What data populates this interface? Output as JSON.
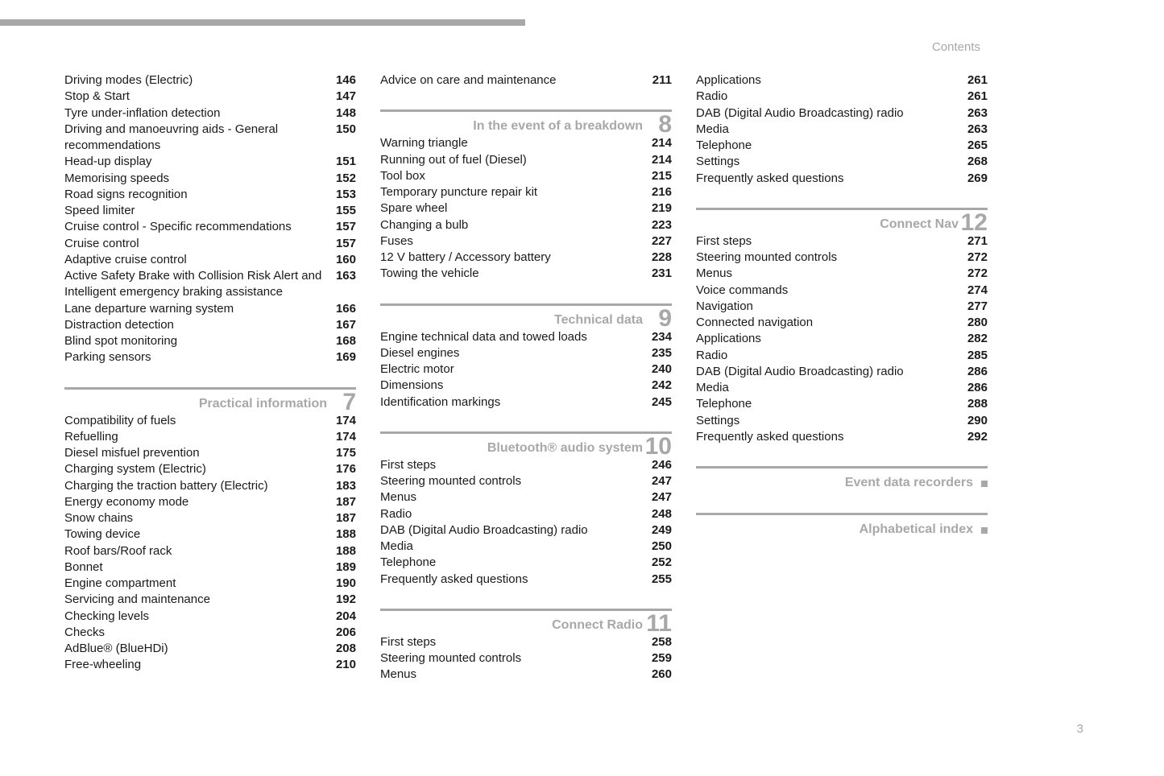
{
  "header_label": "Contents",
  "page_number": "3",
  "columns": [
    {
      "blocks": [
        {
          "entries": [
            {
              "topic": "Driving modes (Electric)",
              "page": "146"
            },
            {
              "topic": "Stop & Start",
              "page": "147"
            },
            {
              "topic": "Tyre under-inflation detection",
              "page": "148"
            },
            {
              "topic": "Driving and manoeuvring aids - General recommendations",
              "page": "150"
            },
            {
              "topic": "Head-up display",
              "page": "151"
            },
            {
              "topic": "Memorising speeds",
              "page": "152"
            },
            {
              "topic": "Road signs recognition",
              "page": "153"
            },
            {
              "topic": "Speed limiter",
              "page": "155"
            },
            {
              "topic": "Cruise control - Specific recommendations",
              "page": "157"
            },
            {
              "topic": "Cruise control",
              "page": "157"
            },
            {
              "topic": "Adaptive cruise control",
              "page": "160"
            },
            {
              "topic": "Active Safety Brake with Collision Risk Alert and Intelligent emergency braking assistance",
              "page": "163"
            },
            {
              "topic": "Lane departure warning system",
              "page": "166"
            },
            {
              "topic": "Distraction detection",
              "page": "167"
            },
            {
              "topic": "Blind spot monitoring",
              "page": "168"
            },
            {
              "topic": "Parking sensors",
              "page": "169"
            }
          ]
        },
        {
          "section": {
            "title": "Practical information",
            "num": "7"
          },
          "entries": [
            {
              "topic": "Compatibility of fuels",
              "page": "174"
            },
            {
              "topic": "Refuelling",
              "page": "174"
            },
            {
              "topic": "Diesel misfuel prevention",
              "page": "175"
            },
            {
              "topic": "Charging system (Electric)",
              "page": "176"
            },
            {
              "topic": "Charging the traction battery (Electric)",
              "page": "183"
            },
            {
              "topic": "Energy economy mode",
              "page": "187"
            },
            {
              "topic": "Snow chains",
              "page": "187"
            },
            {
              "topic": "Towing device",
              "page": "188"
            },
            {
              "topic": "Roof bars/Roof rack",
              "page": "188"
            },
            {
              "topic": "Bonnet",
              "page": "189"
            },
            {
              "topic": "Engine compartment",
              "page": "190"
            },
            {
              "topic": "Servicing and maintenance",
              "page": "192"
            },
            {
              "topic": "Checking levels",
              "page": "204"
            },
            {
              "topic": "Checks",
              "page": "206"
            },
            {
              "topic": "AdBlue® (BlueHDi)",
              "page": "208"
            },
            {
              "topic": "Free-wheeling",
              "page": "210"
            }
          ]
        }
      ]
    },
    {
      "blocks": [
        {
          "entries": [
            {
              "topic": "Advice on care and maintenance",
              "page": "211"
            }
          ]
        },
        {
          "section": {
            "title": "In the event of a breakdown",
            "num": "8"
          },
          "entries": [
            {
              "topic": "Warning triangle",
              "page": "214"
            },
            {
              "topic": "Running out of fuel (Diesel)",
              "page": "214"
            },
            {
              "topic": "Tool box",
              "page": "215"
            },
            {
              "topic": "Temporary puncture repair kit",
              "page": "216"
            },
            {
              "topic": "Spare wheel",
              "page": "219"
            },
            {
              "topic": "Changing a bulb",
              "page": "223"
            },
            {
              "topic": "Fuses",
              "page": "227"
            },
            {
              "topic": "12 V battery / Accessory battery",
              "page": "228"
            },
            {
              "topic": "Towing the vehicle",
              "page": "231"
            }
          ]
        },
        {
          "section": {
            "title": "Technical data",
            "num": "9"
          },
          "entries": [
            {
              "topic": "Engine technical data and towed loads",
              "page": "234"
            },
            {
              "topic": "Diesel engines",
              "page": "235"
            },
            {
              "topic": "Electric motor",
              "page": "240"
            },
            {
              "topic": "Dimensions",
              "page": "242"
            },
            {
              "topic": "Identification markings",
              "page": "245"
            }
          ]
        },
        {
          "section": {
            "title": "Bluetooth® audio system",
            "num": "10"
          },
          "entries": [
            {
              "topic": "First steps",
              "page": "246"
            },
            {
              "topic": "Steering mounted controls",
              "page": "247"
            },
            {
              "topic": "Menus",
              "page": "247"
            },
            {
              "topic": "Radio",
              "page": "248"
            },
            {
              "topic": "DAB (Digital Audio Broadcasting) radio",
              "page": "249"
            },
            {
              "topic": "Media",
              "page": "250"
            },
            {
              "topic": "Telephone",
              "page": "252"
            },
            {
              "topic": "Frequently asked questions",
              "page": "255"
            }
          ]
        },
        {
          "section": {
            "title": "Connect Radio",
            "num": "11"
          },
          "entries": [
            {
              "topic": "First steps",
              "page": "258"
            },
            {
              "topic": "Steering mounted controls",
              "page": "259"
            },
            {
              "topic": "Menus",
              "page": "260"
            }
          ]
        }
      ]
    },
    {
      "blocks": [
        {
          "entries": [
            {
              "topic": "Applications",
              "page": "261"
            },
            {
              "topic": "Radio",
              "page": "261"
            },
            {
              "topic": "DAB (Digital Audio Broadcasting) radio",
              "page": "263"
            },
            {
              "topic": "Media",
              "page": "263"
            },
            {
              "topic": "Telephone",
              "page": "265"
            },
            {
              "topic": "Settings",
              "page": "268"
            },
            {
              "topic": "Frequently asked questions",
              "page": "269"
            }
          ]
        },
        {
          "section": {
            "title": "Connect Nav",
            "num": "12"
          },
          "entries": [
            {
              "topic": "First steps",
              "page": "271"
            },
            {
              "topic": "Steering mounted controls",
              "page": "272"
            },
            {
              "topic": "Menus",
              "page": "272"
            },
            {
              "topic": "Voice commands",
              "page": "274"
            },
            {
              "topic": "Navigation",
              "page": "277"
            },
            {
              "topic": "Connected navigation",
              "page": "280"
            },
            {
              "topic": "Applications",
              "page": "282"
            },
            {
              "topic": "Radio",
              "page": "285"
            },
            {
              "topic": "DAB (Digital Audio Broadcasting) radio",
              "page": "286"
            },
            {
              "topic": "Media",
              "page": "286"
            },
            {
              "topic": "Telephone",
              "page": "288"
            },
            {
              "topic": "Settings",
              "page": "290"
            },
            {
              "topic": "Frequently asked questions",
              "page": "292"
            }
          ]
        },
        {
          "section": {
            "title": "Event data recorders",
            "square": true
          },
          "entries": []
        },
        {
          "section": {
            "title": "Alphabetical index",
            "square": true
          },
          "entries": []
        }
      ]
    }
  ]
}
